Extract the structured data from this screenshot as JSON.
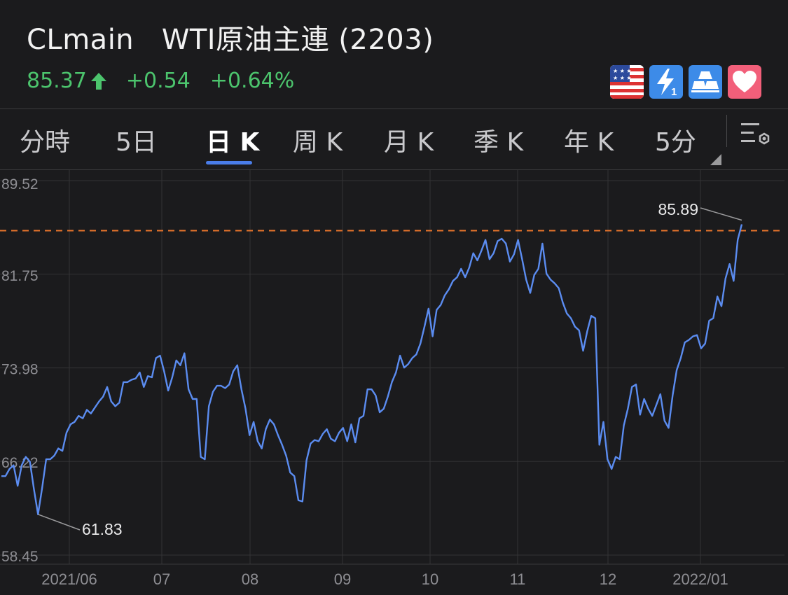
{
  "header": {
    "symbol": "CLmain",
    "name": "WTI原油主連 (2203)",
    "price": "85.37",
    "change": "+0.54",
    "change_pct": "+0.64%",
    "direction": "up",
    "up_color": "#4cc46d"
  },
  "badges": [
    {
      "icon": "us-flag-icon"
    },
    {
      "icon": "lightning-level1-icon"
    },
    {
      "icon": "gold-bars-icon"
    },
    {
      "icon": "heart-favorite-icon"
    }
  ],
  "tabs": [
    {
      "label": "分時",
      "active": false
    },
    {
      "label": "5日",
      "active": false
    },
    {
      "label": "日 K",
      "active": true
    },
    {
      "label": "周 K",
      "active": false
    },
    {
      "label": "月 K",
      "active": false
    },
    {
      "label": "季 K",
      "active": false
    },
    {
      "label": "年 K",
      "active": false
    },
    {
      "label": "5分",
      "active": false
    }
  ],
  "chart_data": {
    "type": "line",
    "series": [
      {
        "values": [
          65.0,
          65.0,
          65.6,
          65.9,
          64.2,
          65.9,
          66.6,
          66.2,
          63.9,
          61.83,
          64.0,
          66.4,
          66.4,
          66.7,
          67.3,
          67.1,
          68.6,
          69.3,
          69.5,
          70.0,
          69.8,
          70.5,
          70.2,
          70.7,
          71.2,
          71.6,
          72.4,
          71.2,
          70.8,
          71.1,
          72.8,
          72.8,
          73.0,
          73.1,
          73.6,
          72.4,
          73.3,
          73.2,
          74.8,
          75.0,
          73.7,
          72.1,
          73.2,
          74.6,
          74.2,
          75.2,
          72.2,
          71.4,
          71.4,
          66.6,
          66.4,
          70.8,
          72.0,
          72.5,
          72.5,
          72.3,
          72.6,
          73.7,
          74.2,
          72.2,
          70.6,
          68.4,
          69.5,
          67.9,
          67.3,
          68.9,
          69.7,
          69.3,
          68.4,
          67.6,
          66.7,
          65.3,
          65.0,
          63.0,
          62.9,
          66.3,
          67.7,
          68.0,
          67.9,
          68.5,
          68.9,
          68.1,
          67.9,
          68.6,
          69.0,
          67.9,
          69.3,
          67.8,
          69.8,
          70.0,
          72.2,
          72.2,
          71.7,
          70.3,
          70.6,
          71.6,
          72.8,
          73.6,
          75.0,
          74.0,
          74.3,
          74.8,
          75.1,
          76.0,
          77.4,
          78.9,
          76.6,
          78.8,
          79.2,
          80.0,
          80.5,
          81.2,
          81.5,
          82.2,
          81.5,
          82.3,
          83.5,
          82.9,
          83.7,
          84.6,
          83.0,
          83.5,
          84.5,
          84.7,
          84.3,
          82.8,
          83.4,
          84.6,
          83.0,
          81.3,
          80.2,
          81.7,
          82.2,
          84.3,
          81.8,
          81.3,
          81.0,
          80.6,
          79.4,
          78.5,
          78.1,
          77.4,
          77.1,
          75.4,
          77.0,
          78.3,
          78.1,
          67.6,
          69.5,
          66.4,
          65.6,
          66.6,
          66.4,
          69.2,
          70.6,
          72.4,
          72.6,
          70.1,
          71.4,
          70.6,
          70.0,
          70.9,
          71.8,
          69.6,
          69.0,
          71.7,
          73.8,
          74.8,
          76.1,
          76.3,
          76.6,
          76.7,
          75.6,
          76.0,
          77.9,
          78.1,
          79.9,
          79.1,
          81.4,
          82.6,
          81.2,
          84.6,
          85.89
        ]
      }
    ],
    "x_ticks": [
      "2021/06",
      "07",
      "08",
      "09",
      "10",
      "11",
      "12",
      "2022/01"
    ],
    "y_ticks": [
      "89.52",
      "81.75",
      "73.98",
      "66.22",
      "58.45"
    ],
    "ylim": [
      58.45,
      89.52
    ],
    "grid": true,
    "annotations": {
      "max_label": "85.89",
      "min_label": "61.83",
      "last_price": 85.37
    },
    "line_color": "#5b8cf0",
    "ref_line_color": "#e8742c"
  }
}
